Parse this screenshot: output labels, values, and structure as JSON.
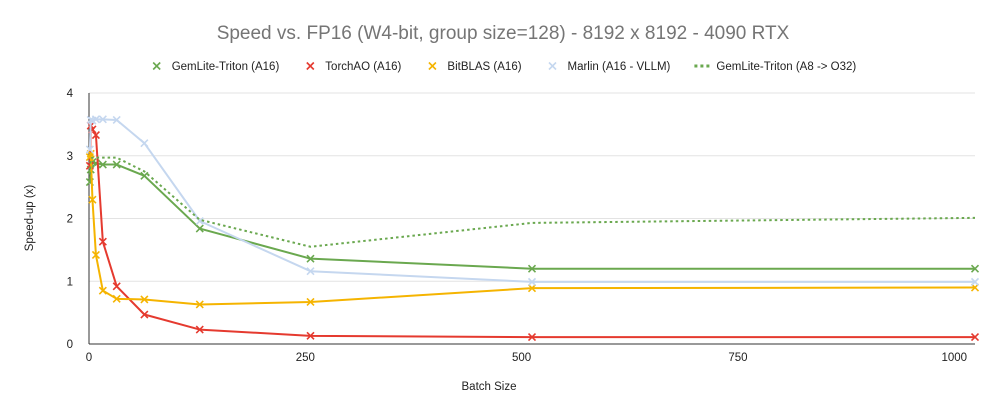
{
  "chart_data": {
    "type": "line",
    "title": "Speed vs. FP16 (W4-bit, group size=128) - 8192 x 8192 - 4090 RTX",
    "xlabel": "Batch Size",
    "ylabel": "Speed-up (x)",
    "xlim": [
      0,
      1024
    ],
    "ylim": [
      0,
      4
    ],
    "xticks": [
      0,
      250,
      500,
      750,
      1000
    ],
    "yticks": [
      0,
      1,
      2,
      3,
      4
    ],
    "grid": "horizontal",
    "legend_position": "top",
    "series": [
      {
        "name": "GemLite-Triton (A16)",
        "color": "#6aa84f",
        "style": "solid",
        "marker": "x",
        "x": [
          1,
          2,
          4,
          8,
          16,
          32,
          64,
          128,
          256,
          512,
          1024
        ],
        "y": [
          2.58,
          2.78,
          2.9,
          2.88,
          2.86,
          2.86,
          2.68,
          1.84,
          1.36,
          1.2,
          1.2
        ]
      },
      {
        "name": "TorchAO (A16)",
        "color": "#e53a2f",
        "style": "solid",
        "marker": "x",
        "x": [
          1,
          2,
          4,
          8,
          16,
          32,
          64,
          128,
          256,
          512,
          1024
        ],
        "y": [
          2.84,
          3.48,
          3.42,
          3.33,
          1.63,
          0.92,
          0.47,
          0.23,
          0.13,
          0.11,
          0.11
        ]
      },
      {
        "name": "BitBLAS (A16)",
        "color": "#f5b400",
        "style": "solid",
        "marker": "x",
        "x": [
          1,
          2,
          4,
          8,
          16,
          32,
          64,
          128,
          256,
          512,
          1024
        ],
        "y": [
          2.98,
          3.03,
          2.3,
          1.42,
          0.85,
          0.72,
          0.71,
          0.63,
          0.67,
          0.89,
          0.9
        ]
      },
      {
        "name": "Marlin (A16 - VLLM)",
        "color": "#c5d7ef",
        "style": "solid",
        "marker": "x",
        "x": [
          1,
          2,
          4,
          8,
          16,
          32,
          64,
          128,
          256,
          512,
          1024
        ],
        "y": [
          3.1,
          3.57,
          3.56,
          3.58,
          3.58,
          3.57,
          3.2,
          1.96,
          1.16,
          0.99,
          0.99
        ]
      },
      {
        "name": "GemLite-Triton (A8 -> O32)",
        "color": "#6aa84f",
        "style": "dotted",
        "marker": "none",
        "x": [
          1,
          2,
          4,
          8,
          16,
          32,
          64,
          128,
          256,
          512,
          1024
        ],
        "y": [
          2.7,
          2.95,
          2.97,
          2.97,
          2.97,
          2.97,
          2.75,
          1.98,
          1.55,
          1.93,
          2.01
        ]
      }
    ]
  }
}
